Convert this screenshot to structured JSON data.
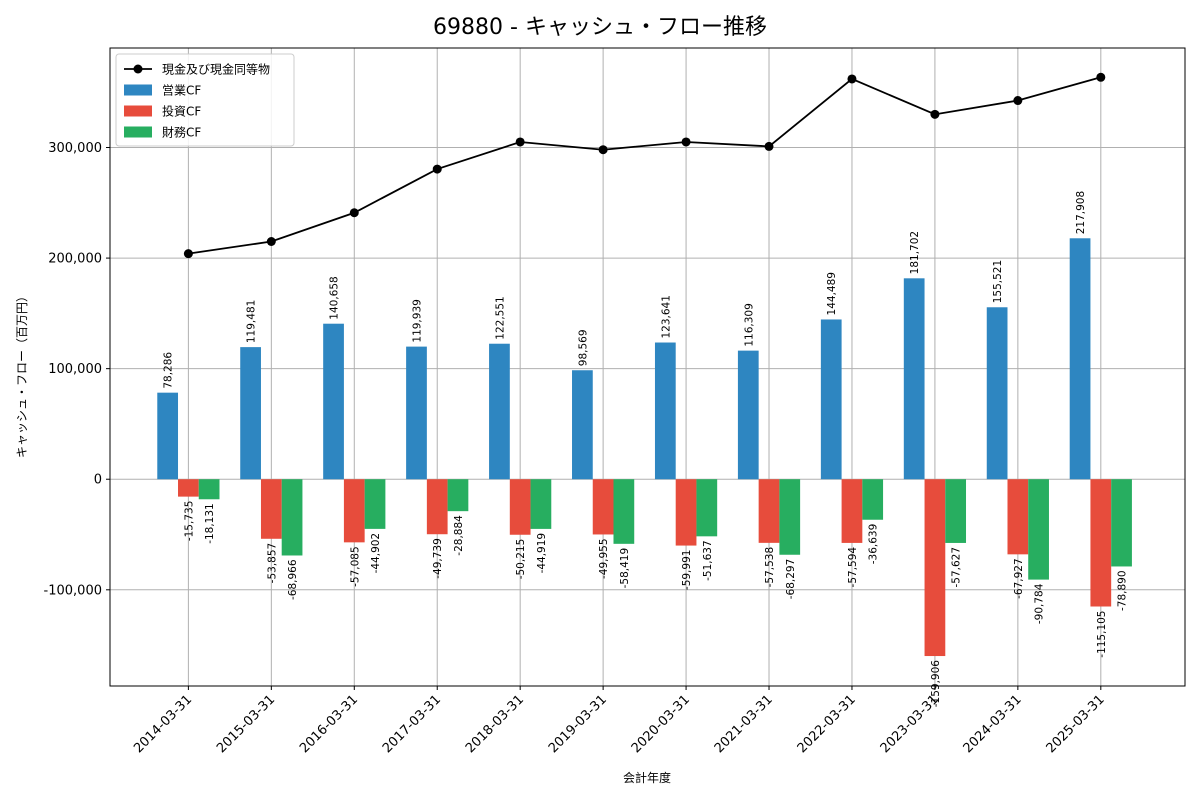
{
  "chart_data": {
    "type": "bar",
    "title": "69880 - キャッシュ・フロー推移",
    "xlabel": "会計年度",
    "ylabel": "キャッシュ・フロー（百万円）",
    "ylim": [
      -187000,
      390000
    ],
    "yticks": [
      -100000,
      0,
      100000,
      200000,
      300000
    ],
    "ytick_labels": [
      "-100,000",
      "0",
      "100,000",
      "200,000",
      "300,000"
    ],
    "grid": true,
    "legend_position": "top-left",
    "categories": [
      "2014-03-31",
      "2015-03-31",
      "2016-03-31",
      "2017-03-31",
      "2018-03-31",
      "2019-03-31",
      "2020-03-31",
      "2021-03-31",
      "2022-03-31",
      "2023-03-31",
      "2024-03-31",
      "2025-03-31"
    ],
    "series": [
      {
        "name": "営業CF",
        "kind": "bar",
        "color": "#2e86c1",
        "values": [
          78286,
          119481,
          140658,
          119939,
          122551,
          98569,
          123641,
          116309,
          144489,
          181702,
          155521,
          217908
        ],
        "labels": [
          "78,286",
          "119,481",
          "140,658",
          "119,939",
          "122,551",
          "98,569",
          "123,641",
          "116,309",
          "144,489",
          "181,702",
          "155,521",
          "217,908"
        ]
      },
      {
        "name": "投資CF",
        "kind": "bar",
        "color": "#e74c3c",
        "values": [
          -15735,
          -53857,
          -57085,
          -49739,
          -50215,
          -49955,
          -59991,
          -57538,
          -57594,
          -159906,
          -67927,
          -115105
        ],
        "labels": [
          "-15,735",
          "-53,857",
          "-57,085",
          "-49,739",
          "-50,215",
          "-49,955",
          "-59,991",
          "-57,538",
          "-57,594",
          "-159,906",
          "-67,927",
          "-115,105"
        ]
      },
      {
        "name": "財務CF",
        "kind": "bar",
        "color": "#27ae60",
        "values": [
          -18131,
          -68966,
          -44902,
          -28884,
          -44919,
          -58419,
          -51637,
          -68297,
          -36639,
          -57627,
          -90784,
          -78890
        ],
        "labels": [
          "-18,131",
          "-68,966",
          "-44,902",
          "-28,884",
          "-44,919",
          "-58,419",
          "-51,637",
          "-68,297",
          "-36,639",
          "-57,627",
          "-90,784",
          "-78,890"
        ]
      },
      {
        "name": "現金及び現金同等物",
        "kind": "line",
        "color": "#000000",
        "values": [
          204000,
          215000,
          241000,
          280500,
          305000,
          298000,
          305000,
          301000,
          362000,
          330000,
          342500,
          363500
        ]
      }
    ]
  }
}
